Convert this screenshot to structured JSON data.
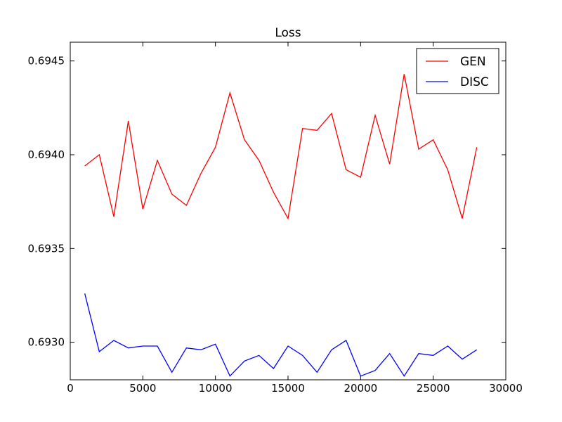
{
  "chart_data": {
    "type": "line",
    "title": "Loss",
    "xlabel": "",
    "ylabel": "",
    "xlim": [
      0,
      30000
    ],
    "ylim": [
      0.6928,
      0.6946
    ],
    "xticks": [
      0,
      5000,
      10000,
      15000,
      20000,
      25000,
      30000
    ],
    "xtick_labels": [
      "0",
      "5000",
      "10000",
      "15000",
      "20000",
      "25000",
      "30000"
    ],
    "yticks": [
      0.693,
      0.6935,
      0.694,
      0.6945
    ],
    "ytick_labels": [
      "0.6930",
      "0.6935",
      "0.6940",
      "0.6945"
    ],
    "grid": false,
    "legend_position": "top-right",
    "x": [
      1000,
      2000,
      3000,
      4000,
      5000,
      6000,
      7000,
      8000,
      9000,
      10000,
      11000,
      12000,
      13000,
      14000,
      15000,
      16000,
      17000,
      18000,
      19000,
      20000,
      21000,
      22000,
      23000,
      24000,
      25000,
      26000,
      27000,
      28000
    ],
    "series": [
      {
        "name": "GEN",
        "color": "#ff0000",
        "values": [
          0.69394,
          0.694,
          0.69367,
          0.69418,
          0.69371,
          0.69397,
          0.69379,
          0.69373,
          0.6939,
          0.69404,
          0.69433,
          0.69408,
          0.69397,
          0.6938,
          0.69366,
          0.69414,
          0.69413,
          0.69422,
          0.69392,
          0.69388,
          0.69421,
          0.69395,
          0.69443,
          0.69403,
          0.69408,
          0.69392,
          0.69366,
          0.69404
        ]
      },
      {
        "name": "DISC",
        "color": "#0000ff",
        "values": [
          0.69326,
          0.69295,
          0.69301,
          0.69297,
          0.69298,
          0.69298,
          0.69284,
          0.69297,
          0.69296,
          0.69299,
          0.69282,
          0.6929,
          0.69293,
          0.69286,
          0.69298,
          0.69293,
          0.69284,
          0.69296,
          0.69301,
          0.69282,
          0.69285,
          0.69294,
          0.69282,
          0.69294,
          0.69293,
          0.69298,
          0.69291,
          0.69296
        ]
      }
    ]
  }
}
